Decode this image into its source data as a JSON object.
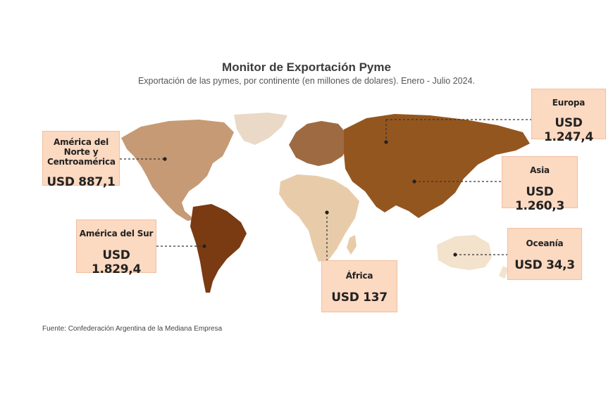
{
  "title": "Monitor de Exportación Pyme",
  "subtitle": "Exportación de las pymes, por continente (en millones de dolares). Enero - Julio 2024.",
  "source": "Fuente: Confederación Argentina de la Mediana Empresa",
  "colors": {
    "label_background": "#fcd9c1",
    "north_america": "#c69a74",
    "south_america": "#7a3a12",
    "europe": "#9d6a42",
    "asia": "#94561f",
    "africa": "#e8ccaa",
    "oceania": "#f3e2cc"
  },
  "regions": {
    "north_america": {
      "name": "América del Norte y Centroamérica",
      "value": "USD 887,1"
    },
    "south_america": {
      "name": "América del Sur",
      "value": "USD 1.829,4"
    },
    "europe": {
      "name": "Europa",
      "value": "USD 1.247,4"
    },
    "asia": {
      "name": "Asia",
      "value": "USD 1.260,3"
    },
    "africa": {
      "name": "África",
      "value": "USD 137"
    },
    "oceania": {
      "name": "Oceanía",
      "value": "USD 34,3"
    }
  }
}
